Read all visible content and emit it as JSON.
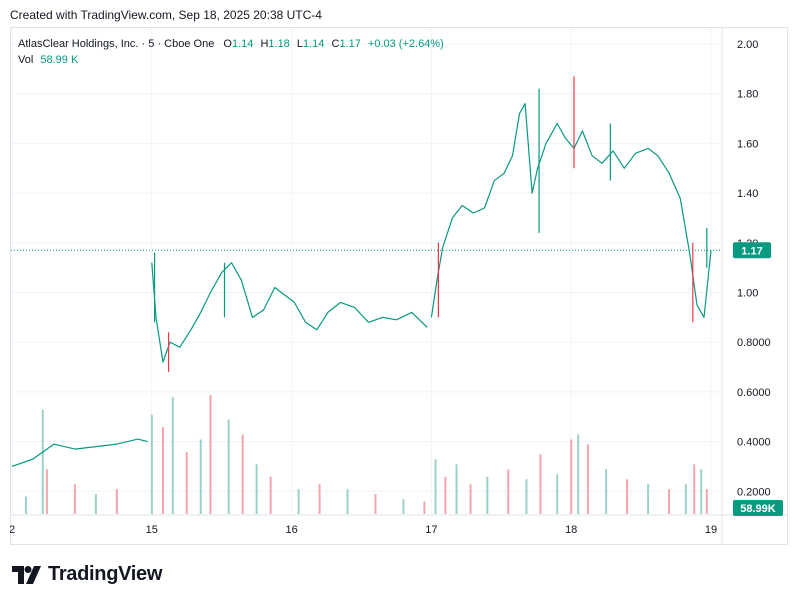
{
  "header": {
    "created": "Created with TradingView.com, Sep 18, 2025 20:38 UTC-4"
  },
  "legend": {
    "symbol": "AtlasClear Holdings, Inc.",
    "interval": "5",
    "exchange": "Cboe One",
    "open_label": "O",
    "open": "1.14",
    "high_label": "H",
    "high": "1.18",
    "low_label": "L",
    "low": "1.14",
    "close_label": "C",
    "close": "1.17",
    "change": "+0.03 (+2.64%)",
    "vol_label": "Vol",
    "vol": "58.99 K"
  },
  "brand": {
    "name": "TradingView"
  },
  "colors": {
    "up": "#089981",
    "down": "#f23645",
    "up_vol": "#9bd1c9",
    "down_vol": "#f5a6ad",
    "grid": "#f0f3fa",
    "text": "#131722",
    "axis_text": "#131722"
  },
  "chart_data": {
    "type": "candlestick",
    "symbol": "AtlasClear Holdings, Inc.",
    "interval_minutes": 5,
    "y_ticks": [
      "2.00",
      "1.80",
      "1.60",
      "1.40",
      "1.20",
      "1.00",
      "0.8000",
      "0.6000",
      "0.4000",
      "0.2000"
    ],
    "ylim": [
      0.1,
      2.08
    ],
    "x_ticks": [
      "2",
      "15",
      "16",
      "17",
      "18",
      "19"
    ],
    "x_tick_positions": [
      0,
      1,
      2,
      3,
      4,
      5
    ],
    "last_price_label": "1.17",
    "last_price": 1.17,
    "volume_label": "58.99K",
    "price_segments": [
      {
        "x": [
          0.0,
          0.15,
          0.3,
          0.45,
          0.6,
          0.75,
          0.9,
          0.97
        ],
        "y": [
          0.3,
          0.33,
          0.39,
          0.37,
          0.38,
          0.39,
          0.41,
          0.4
        ]
      },
      {
        "x": [
          1.0,
          1.03,
          1.08,
          1.13,
          1.2,
          1.28,
          1.35,
          1.42,
          1.5,
          1.57,
          1.64,
          1.72,
          1.8,
          1.88,
          1.95,
          2.02,
          2.1,
          2.18,
          2.26,
          2.35,
          2.45,
          2.55,
          2.65,
          2.75,
          2.86,
          2.97
        ],
        "y": [
          1.12,
          0.9,
          0.72,
          0.8,
          0.78,
          0.85,
          0.92,
          1.0,
          1.08,
          1.12,
          1.05,
          0.9,
          0.93,
          1.02,
          0.99,
          0.96,
          0.88,
          0.85,
          0.92,
          0.96,
          0.94,
          0.88,
          0.9,
          0.89,
          0.92,
          0.86
        ]
      },
      {
        "x": [
          3.0,
          3.04,
          3.08,
          3.15,
          3.22,
          3.3,
          3.38,
          3.45,
          3.52,
          3.58,
          3.63,
          3.67,
          3.72,
          3.76,
          3.82,
          3.9,
          3.96,
          4.02,
          4.08,
          4.15,
          4.22,
          4.3,
          4.38,
          4.46,
          4.55,
          4.62,
          4.7,
          4.78,
          4.85,
          4.9,
          4.95,
          5.0
        ],
        "y": [
          0.9,
          1.05,
          1.18,
          1.3,
          1.35,
          1.32,
          1.34,
          1.45,
          1.48,
          1.55,
          1.72,
          1.76,
          1.4,
          1.5,
          1.6,
          1.68,
          1.62,
          1.58,
          1.65,
          1.55,
          1.52,
          1.57,
          1.5,
          1.56,
          1.58,
          1.55,
          1.48,
          1.38,
          1.15,
          0.95,
          0.9,
          1.17
        ]
      }
    ],
    "candle_wicks": [
      {
        "x": 1.02,
        "high": 1.16,
        "low": 0.88
      },
      {
        "x": 1.12,
        "high": 0.84,
        "low": 0.68
      },
      {
        "x": 1.52,
        "high": 1.12,
        "low": 0.9
      },
      {
        "x": 3.05,
        "high": 1.2,
        "low": 0.9
      },
      {
        "x": 3.77,
        "high": 1.82,
        "low": 1.24
      },
      {
        "x": 4.02,
        "high": 1.87,
        "low": 1.5
      },
      {
        "x": 4.28,
        "high": 1.68,
        "low": 1.45
      },
      {
        "x": 4.87,
        "high": 1.2,
        "low": 0.88
      },
      {
        "x": 4.97,
        "high": 1.26,
        "low": 1.1
      }
    ],
    "volume_bars": {
      "x": [
        0.1,
        0.25,
        0.22,
        0.45,
        0.6,
        0.75,
        1.0,
        1.08,
        1.15,
        1.25,
        1.35,
        1.42,
        1.55,
        1.65,
        1.75,
        1.85,
        2.05,
        2.2,
        2.4,
        2.6,
        2.8,
        2.95,
        3.03,
        3.1,
        3.18,
        3.28,
        3.4,
        3.55,
        3.68,
        3.78,
        3.9,
        4.0,
        4.05,
        4.12,
        4.25,
        4.4,
        4.55,
        4.7,
        4.82,
        4.88,
        4.93,
        4.97
      ],
      "v": [
        0.07,
        0.18,
        0.42,
        0.12,
        0.08,
        0.1,
        0.4,
        0.35,
        0.47,
        0.25,
        0.3,
        0.48,
        0.38,
        0.32,
        0.2,
        0.15,
        0.1,
        0.12,
        0.1,
        0.08,
        0.06,
        0.05,
        0.22,
        0.15,
        0.2,
        0.12,
        0.15,
        0.18,
        0.14,
        0.24,
        0.16,
        0.3,
        0.32,
        0.28,
        0.18,
        0.14,
        0.12,
        0.1,
        0.12,
        0.2,
        0.18,
        0.1
      ]
    }
  }
}
